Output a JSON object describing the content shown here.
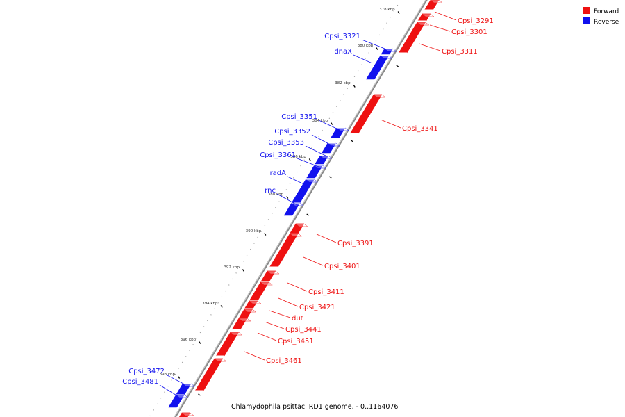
{
  "colors": {
    "forward": "#ee1111",
    "reverse": "#1111ee",
    "backbone": "#888888",
    "tick": "#000000"
  },
  "legend": [
    {
      "label": "Forward",
      "color": "#ee1111"
    },
    {
      "label": "Reverse",
      "color": "#1111ee"
    }
  ],
  "caption": "Chlamydophila psittaci RD1 genome. - 0..1164076",
  "ticks": [
    "378 kbp",
    "380 kbp",
    "382 kbp",
    "384 kbp",
    "386 kbp",
    "388 kbp",
    "390 kbp",
    "392 kbp",
    "394 kbp",
    "396 kbp",
    "398 kbp"
  ],
  "forward_labels": [
    "Cpsi_3291",
    "Cpsi_3301",
    "Cpsi_3311",
    "Cpsi_3341",
    "Cpsi_3391",
    "Cpsi_3401",
    "Cpsi_3411",
    "Cpsi_3421",
    "dut",
    "Cpsi_3441",
    "Cpsi_3451",
    "Cpsi_3461"
  ],
  "reverse_labels": [
    "Cpsi_3321",
    "dnaX",
    "Cpsi_3351",
    "Cpsi_3352",
    "Cpsi_3353",
    "Cpsi_3361",
    "radA",
    "rnc",
    "Cpsi_3472",
    "Cpsi_3481"
  ]
}
